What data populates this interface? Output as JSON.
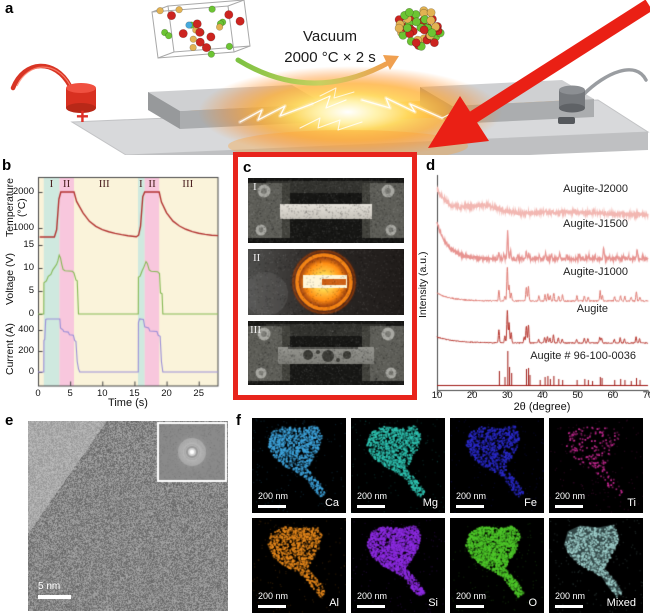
{
  "panel_labels": {
    "a": "a",
    "b": "b",
    "c": "c",
    "d": "d",
    "e": "e",
    "f": "f"
  },
  "panel_a": {
    "vacuum_line1": "Vacuum",
    "vacuum_line2": "2000 °C × 2 s",
    "plus_label": "+",
    "minus_label": "−",
    "atom_colors": [
      "#cc2420",
      "#6cc433",
      "#e2b252",
      "#46aadd"
    ],
    "atom_weights": [
      0.38,
      0.3,
      0.22,
      0.1
    ]
  },
  "chart_data": [
    {
      "id": "panel_b",
      "type": "line",
      "xlabel": "Time (s)",
      "xlim": [
        0,
        28
      ],
      "xticks": [
        0,
        5,
        10,
        15,
        20,
        25
      ],
      "plot_bg": "#faf3da",
      "regions": [
        {
          "label": "I",
          "t0": 0.9,
          "t1": 3.35,
          "color": "#cfe9df"
        },
        {
          "label": "II",
          "t0": 3.35,
          "t1": 5.6,
          "color": "#f8c7dd"
        },
        {
          "label": "I",
          "t0": 15.55,
          "t1": 16.6,
          "color": "#cfe9df"
        },
        {
          "label": "II",
          "t0": 16.6,
          "t1": 18.85,
          "color": "#f8c7dd"
        }
      ],
      "region_labels": [
        {
          "label": "I",
          "t": 2.1
        },
        {
          "label": "II",
          "t": 4.45
        },
        {
          "label": "III",
          "t": 10.3
        },
        {
          "label": "I",
          "t": 16.0
        },
        {
          "label": "II",
          "t": 17.75
        },
        {
          "label": "III",
          "t": 23.3
        }
      ],
      "subplots": [
        {
          "ylabel": "Temperature (°C)",
          "yticks": [
            2000,
            1000
          ],
          "color": "#b23230",
          "points": [
            [
              0.25,
              750
            ],
            [
              2.55,
              750
            ],
            [
              2.9,
              950
            ],
            [
              3.25,
              1800
            ],
            [
              3.55,
              2000
            ],
            [
              5.6,
              2000
            ],
            [
              6.0,
              1740
            ],
            [
              7,
              1420
            ],
            [
              8,
              1185
            ],
            [
              9,
              1045
            ],
            [
              10,
              955
            ],
            [
              11,
              895
            ],
            [
              12,
              850
            ],
            [
              13,
              815
            ],
            [
              14,
              785
            ],
            [
              15.3,
              758
            ],
            [
              15.65,
              800
            ],
            [
              15.95,
              1050
            ],
            [
              16.3,
              1870
            ],
            [
              16.6,
              2000
            ],
            [
              18.85,
              2000
            ],
            [
              19.2,
              1720
            ],
            [
              20,
              1420
            ],
            [
              21,
              1190
            ],
            [
              22,
              1055
            ],
            [
              23,
              965
            ],
            [
              24,
              900
            ],
            [
              25,
              855
            ],
            [
              26,
              822
            ],
            [
              27,
              798
            ],
            [
              28,
              788
            ]
          ]
        },
        {
          "ylabel": "Voltage (V)",
          "yticks": [
            15,
            10,
            5,
            0
          ],
          "color": "#85b954",
          "points": [
            [
              0,
              0
            ],
            [
              0.9,
              0
            ],
            [
              0.92,
              6.8
            ],
            [
              1.3,
              7.2
            ],
            [
              1.6,
              8.2
            ],
            [
              2.0,
              8.6
            ],
            [
              2.3,
              9.6
            ],
            [
              2.6,
              10.2
            ],
            [
              2.9,
              10.8
            ],
            [
              3.1,
              11.6
            ],
            [
              3.3,
              12.8
            ],
            [
              3.5,
              12.2
            ],
            [
              3.7,
              10.8
            ],
            [
              3.9,
              9.7
            ],
            [
              4.2,
              9.4
            ],
            [
              5.35,
              9.3
            ],
            [
              5.6,
              8.9
            ],
            [
              5.9,
              7.4
            ],
            [
              6.1,
              7.2
            ],
            [
              6.3,
              0
            ],
            [
              15.6,
              0
            ],
            [
              15.62,
              8.0
            ],
            [
              15.9,
              8.3
            ],
            [
              16.2,
              9.4
            ],
            [
              16.5,
              10.3
            ],
            [
              16.8,
              11.4
            ],
            [
              17.0,
              11.0
            ],
            [
              17.3,
              9.6
            ],
            [
              17.6,
              9.3
            ],
            [
              18.6,
              9.2
            ],
            [
              18.9,
              8.8
            ],
            [
              19.05,
              4.6
            ],
            [
              19.3,
              4.4
            ],
            [
              19.42,
              0
            ],
            [
              28,
              0
            ]
          ]
        },
        {
          "ylabel": "Current (A)",
          "yticks": [
            400,
            200,
            0
          ],
          "color": "#9b8fd8",
          "points": [
            [
              0,
              0
            ],
            [
              0.9,
              0
            ],
            [
              0.92,
              300
            ],
            [
              1.05,
              310
            ],
            [
              1.2,
              500
            ],
            [
              1.4,
              505
            ],
            [
              3.4,
              505
            ],
            [
              3.5,
              420
            ],
            [
              3.9,
              400
            ],
            [
              4.0,
              385
            ],
            [
              4.7,
              380
            ],
            [
              4.9,
              355
            ],
            [
              5.5,
              350
            ],
            [
              5.7,
              300
            ],
            [
              5.9,
              290
            ],
            [
              6.1,
              100
            ],
            [
              6.3,
              30
            ],
            [
              6.5,
              0
            ],
            [
              15.6,
              0
            ],
            [
              15.62,
              470
            ],
            [
              15.8,
              505
            ],
            [
              16.4,
              500
            ],
            [
              16.6,
              430
            ],
            [
              17.2,
              420
            ],
            [
              17.4,
              390
            ],
            [
              18.5,
              385
            ],
            [
              18.7,
              350
            ],
            [
              19.0,
              340
            ],
            [
              19.2,
              100
            ],
            [
              19.42,
              0
            ],
            [
              28,
              0
            ]
          ]
        }
      ]
    },
    {
      "id": "panel_d",
      "type": "line",
      "xlabel": "2θ (degree)",
      "ylabel": "Intensity (a.u.)",
      "xlim": [
        10,
        70
      ],
      "xticks": [
        10,
        20,
        30,
        40,
        50,
        60,
        70
      ],
      "traces": [
        {
          "label": "Augite-J2000",
          "color": "#f2b7b2",
          "base": 60,
          "noise": 2.2,
          "decay": 26,
          "tau": 3.5,
          "humps": [
            [
              23,
              7,
              9
            ],
            [
              47,
              13,
              3
            ]
          ],
          "peaks": []
        },
        {
          "label": "Augite-J1500",
          "color": "#e79390",
          "base": 104,
          "noise": 1.6,
          "decay": 36,
          "tau": 3.2,
          "humps": [],
          "peaks": [
            [
              27.6,
              6
            ],
            [
              29.0,
              4
            ],
            [
              30.1,
              28
            ],
            [
              30.9,
              8
            ],
            [
              33.0,
              4
            ],
            [
              35.4,
              7
            ],
            [
              36.1,
              6
            ],
            [
              39.1,
              4
            ],
            [
              40.9,
              5
            ],
            [
              42.6,
              4
            ],
            [
              44.9,
              5
            ],
            [
              47.0,
              3
            ],
            [
              50.4,
              4
            ],
            [
              53.1,
              4
            ],
            [
              55.0,
              3
            ],
            [
              57.4,
              12
            ],
            [
              59.0,
              3
            ],
            [
              61.2,
              4
            ],
            [
              63.0,
              3
            ],
            [
              64.5,
              3
            ],
            [
              66.9,
              9
            ],
            [
              68.5,
              3
            ]
          ]
        },
        {
          "label": "Augite-J1000",
          "color": "#de7a72",
          "base": 146,
          "noise": 0.7,
          "decay": 8,
          "tau": 4.0,
          "humps": [],
          "peaks": [
            [
              27.6,
              10
            ],
            [
              29.3,
              5
            ],
            [
              30.0,
              34
            ],
            [
              30.5,
              16
            ],
            [
              31.1,
              8
            ],
            [
              35.4,
              14
            ],
            [
              36.0,
              14
            ],
            [
              39.0,
              5
            ],
            [
              40.7,
              6
            ],
            [
              41.5,
              7
            ],
            [
              42.2,
              5
            ],
            [
              43.2,
              8
            ],
            [
              44.6,
              5
            ],
            [
              45.7,
              6
            ],
            [
              49.8,
              5
            ],
            [
              51.9,
              5
            ],
            [
              53.0,
              4
            ],
            [
              56.4,
              10
            ],
            [
              57.0,
              6
            ],
            [
              60.5,
              4
            ],
            [
              62.2,
              5
            ],
            [
              63.4,
              5
            ],
            [
              65.2,
              4
            ],
            [
              66.7,
              9
            ],
            [
              67.7,
              4
            ]
          ]
        },
        {
          "label": "Augite",
          "color": "#b5342c",
          "base": 188,
          "noise": 0.5,
          "decay": 6,
          "tau": 5.0,
          "humps": [],
          "peaks": [
            [
              27.6,
              13
            ],
            [
              29.3,
              7
            ],
            [
              30.0,
              32
            ],
            [
              30.5,
              20
            ],
            [
              31.1,
              10
            ],
            [
              34.8,
              6
            ],
            [
              35.4,
              17
            ],
            [
              36.0,
              18
            ],
            [
              38.9,
              4
            ],
            [
              40.6,
              6
            ],
            [
              41.4,
              7
            ],
            [
              42.1,
              5
            ],
            [
              43.1,
              8
            ],
            [
              44.5,
              5
            ],
            [
              45.6,
              4
            ],
            [
              49.7,
              4
            ],
            [
              51.9,
              5
            ],
            [
              52.9,
              4
            ],
            [
              56.3,
              6
            ],
            [
              56.8,
              5
            ],
            [
              60.4,
              4
            ],
            [
              62.1,
              5
            ],
            [
              63.3,
              4
            ],
            [
              66.6,
              6
            ],
            [
              67.6,
              4
            ]
          ]
        },
        {
          "label": "Augite # 96-100-0036",
          "color": "#9e1510",
          "base": 230,
          "noise": 0,
          "sticks": true,
          "humps": [],
          "peaks": [
            [
              27.6,
              14
            ],
            [
              29.2,
              8
            ],
            [
              30.0,
              34
            ],
            [
              30.5,
              18
            ],
            [
              31.1,
              12
            ],
            [
              35.3,
              16
            ],
            [
              35.9,
              17
            ],
            [
              36.3,
              10
            ],
            [
              39.2,
              5
            ],
            [
              40.6,
              8
            ],
            [
              41.4,
              9
            ],
            [
              42.1,
              6
            ],
            [
              43.1,
              9
            ],
            [
              44.5,
              6
            ],
            [
              45.6,
              5
            ],
            [
              49.7,
              5
            ],
            [
              51.9,
              6
            ],
            [
              52.9,
              5
            ],
            [
              54.1,
              4
            ],
            [
              56.3,
              8
            ],
            [
              56.8,
              7
            ],
            [
              60.4,
              5
            ],
            [
              62.1,
              6
            ],
            [
              63.3,
              5
            ],
            [
              65.1,
              4
            ],
            [
              66.6,
              7
            ],
            [
              67.6,
              5
            ]
          ]
        }
      ]
    }
  ],
  "panel_c": {
    "photo_labels": [
      "I",
      "II",
      "III"
    ]
  },
  "panel_e": {
    "scale_label": "5 nm"
  },
  "panel_f": {
    "scale_label": "200 nm",
    "blob": [
      [
        0.2,
        0.14
      ],
      [
        0.33,
        0.08
      ],
      [
        0.52,
        0.1
      ],
      [
        0.68,
        0.07
      ],
      [
        0.74,
        0.18
      ],
      [
        0.7,
        0.32
      ],
      [
        0.64,
        0.42
      ],
      [
        0.58,
        0.52
      ],
      [
        0.63,
        0.58
      ],
      [
        0.72,
        0.68
      ],
      [
        0.78,
        0.78
      ],
      [
        0.72,
        0.83
      ],
      [
        0.64,
        0.74
      ],
      [
        0.56,
        0.62
      ],
      [
        0.46,
        0.56
      ],
      [
        0.34,
        0.5
      ],
      [
        0.22,
        0.4
      ],
      [
        0.16,
        0.28
      ]
    ],
    "maps": [
      {
        "label": "Ca",
        "color": "#3fa6df",
        "density": 0.5,
        "solid": false
      },
      {
        "label": "Mg",
        "color": "#2fc4b2",
        "density": 0.55,
        "solid": false
      },
      {
        "label": "Fe",
        "color": "#2a2acc",
        "density": 0.42,
        "solid": false
      },
      {
        "label": "Ti",
        "color": "#d42a9c",
        "density": 0.1,
        "solid": false
      },
      {
        "label": "Al",
        "color": "#e8891c",
        "density": 0.45,
        "solid": false
      },
      {
        "label": "Si",
        "color": "#8d2be2",
        "density": 0.8,
        "solid": false
      },
      {
        "label": "O",
        "color": "#4ec82a",
        "density": 0.85,
        "solid": false
      },
      {
        "label": "Mixed",
        "color": "#9fd0cc",
        "density": 0.35,
        "solid": true
      }
    ]
  }
}
